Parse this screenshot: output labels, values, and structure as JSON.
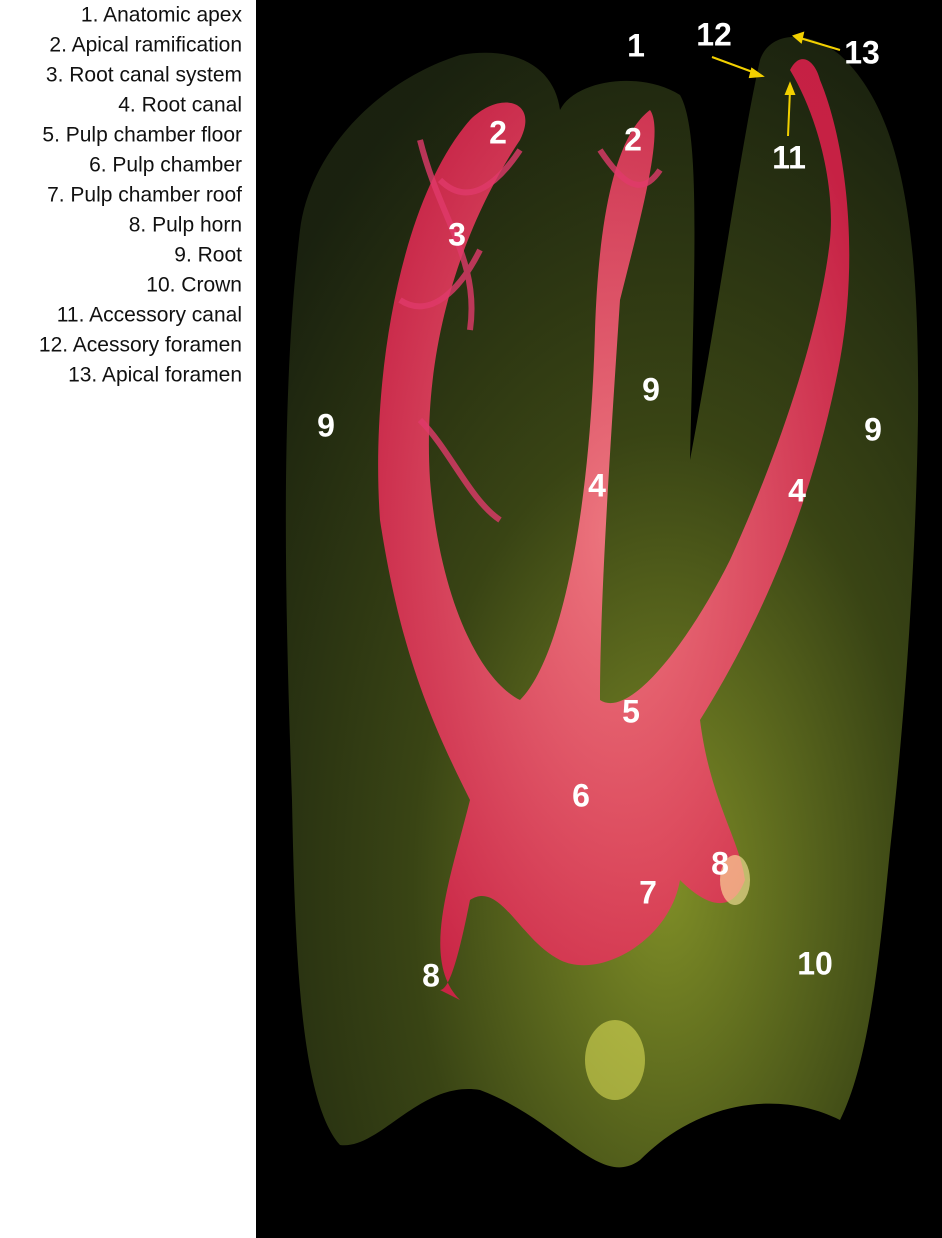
{
  "legend": [
    "1. Anatomic apex",
    "2. Apical ramification",
    "3. Root canal system",
    "4. Root canal",
    "5. Pulp chamber floor",
    "6. Pulp chamber",
    "7. Pulp chamber roof",
    "8. Pulp horn",
    "9. Root",
    "10. Crown",
    "11. Accessory canal",
    "12. Acessory foramen",
    "13. Apical foramen"
  ],
  "image_labels": [
    "1",
    "2",
    "2",
    "3",
    "9",
    "9",
    "9",
    "4",
    "4",
    "5",
    "6",
    "7",
    "8",
    "8",
    "10",
    "11",
    "12",
    "13"
  ]
}
